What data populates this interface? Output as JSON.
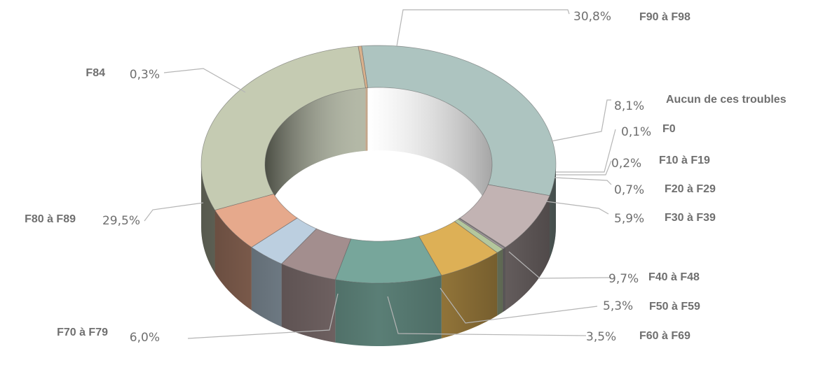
{
  "chart_data": {
    "type": "pie",
    "variant": "3d-donut",
    "slices": [
      {
        "label": "F90 à F98",
        "pct": "30,8%",
        "value": 30.8,
        "color": "#adc4c0"
      },
      {
        "label": "Aucun de ces troubles",
        "pct": "8,1%",
        "value": 8.1,
        "color": "#c2b3b3"
      },
      {
        "label": "F0",
        "pct": "0,1%",
        "value": 0.1,
        "color": "#8f8c8c"
      },
      {
        "label": "F10 à F19",
        "pct": "0,2%",
        "value": 0.2,
        "color": "#a59aa0"
      },
      {
        "label": "F20 à F29",
        "pct": "0,7%",
        "value": 0.7,
        "color": "#b4c79d"
      },
      {
        "label": "F30 à F39",
        "pct": "5,9%",
        "value": 5.9,
        "color": "#ddb056"
      },
      {
        "label": "F40 à F48",
        "pct": "9,7%",
        "value": 9.7,
        "color": "#77a69b"
      },
      {
        "label": "F50 à F59",
        "pct": "5,3%",
        "value": 5.3,
        "color": "#a38e8e"
      },
      {
        "label": "F60 à F69",
        "pct": "3,5%",
        "value": 3.5,
        "color": "#bccfe0"
      },
      {
        "label": "F70 à F79",
        "pct": "6,0%",
        "value": 6.0,
        "color": "#e6a98c"
      },
      {
        "label": "F80 à F89",
        "pct": "29,5%",
        "value": 29.5,
        "color": "#c5cbb2"
      },
      {
        "label": "F84",
        "pct": "0,3%",
        "value": 0.3,
        "color": "#d9b08b"
      }
    ],
    "title": "",
    "legend": "none"
  }
}
